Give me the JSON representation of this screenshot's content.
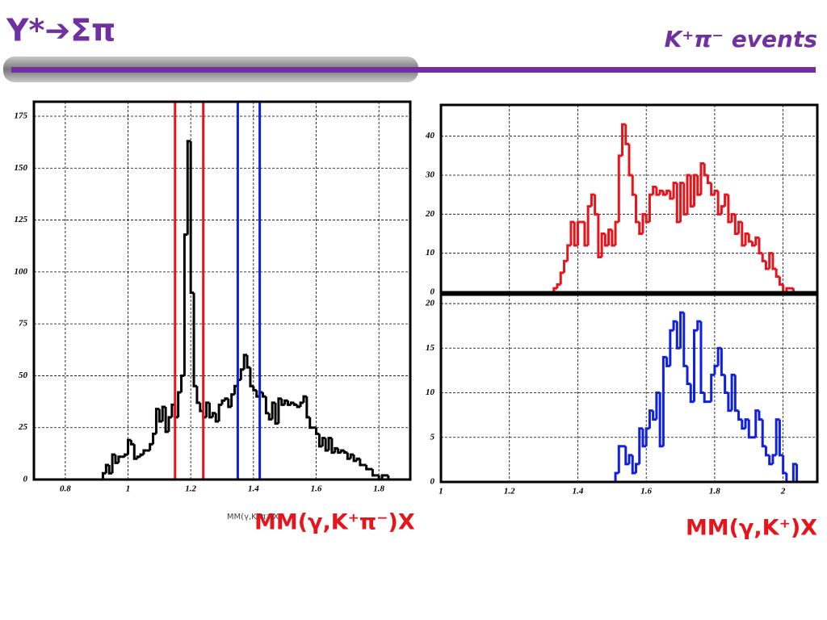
{
  "title": "Y*➔Σπ",
  "subtitle": "K⁺π⁻ events",
  "annotations": [
    "MM(γ,K⁺π⁻)X",
    "MM(γ,K⁺)X"
  ],
  "chart_data": [
    {
      "type": "histogram",
      "xlabel": "MM(γ,K⁺π⁻)X",
      "color": "#000000",
      "grid": true,
      "xlim": [
        0.7,
        1.9
      ],
      "ylim": [
        0,
        182
      ],
      "xticks": [
        0.8,
        1,
        1.2,
        1.4,
        1.6,
        1.8
      ],
      "yticks": [
        0,
        25,
        50,
        75,
        100,
        125,
        150,
        175
      ],
      "bins": [
        0.92,
        0.93,
        0.94,
        0.95,
        0.96,
        0.97,
        0.98,
        0.99,
        1,
        1.01,
        1.02,
        1.03,
        1.04,
        1.05,
        1.06,
        1.07,
        1.08,
        1.09,
        1.1,
        1.11,
        1.12,
        1.13,
        1.14,
        1.15,
        1.16,
        1.17,
        1.18,
        1.19,
        1.2,
        1.21,
        1.22,
        1.23,
        1.24,
        1.25,
        1.26,
        1.27,
        1.28,
        1.29,
        1.3,
        1.31,
        1.32,
        1.33,
        1.34,
        1.35,
        1.36,
        1.37,
        1.38,
        1.39,
        1.4,
        1.41,
        1.42,
        1.43,
        1.44,
        1.45,
        1.46,
        1.47,
        1.48,
        1.49,
        1.5,
        1.51,
        1.52,
        1.53,
        1.54,
        1.55,
        1.56,
        1.57,
        1.58,
        1.59,
        1.6,
        1.61,
        1.62,
        1.63,
        1.64,
        1.65,
        1.66,
        1.67,
        1.68,
        1.69,
        1.7,
        1.71,
        1.72,
        1.73,
        1.74,
        1.75,
        1.76,
        1.77,
        1.78,
        1.79,
        1.8,
        1.81,
        1.82,
        1.83,
        1.84
      ],
      "values": [
        3,
        7,
        3,
        12,
        8,
        11,
        11,
        12,
        19,
        17,
        10,
        11,
        12,
        14,
        14,
        17,
        22,
        34,
        28,
        35,
        23,
        30,
        36,
        30,
        42,
        50,
        118,
        163,
        90,
        45,
        37,
        33,
        30,
        37,
        30,
        32,
        28,
        36,
        38,
        39,
        35,
        41,
        45,
        48,
        53,
        60,
        54,
        45,
        43,
        40,
        42,
        40,
        32,
        29,
        37,
        27,
        39,
        36,
        38,
        36,
        37,
        36,
        35,
        37,
        40,
        30,
        25,
        25,
        22,
        16,
        20,
        14,
        20,
        13,
        15,
        13,
        14,
        13,
        10,
        12,
        9,
        10,
        7,
        7,
        5,
        5,
        2,
        2,
        0,
        2,
        2,
        0
      ],
      "markers": [
        {
          "x": 1.15,
          "color": "#e8141c"
        },
        {
          "x": 1.24,
          "color": "#e8141c"
        },
        {
          "x": 1.35,
          "color": "#1020e0"
        },
        {
          "x": 1.42,
          "color": "#1020e0"
        }
      ]
    },
    {
      "type": "histogram",
      "color": "#e8141c",
      "grid": true,
      "show_xtick_labels": false,
      "xlim": [
        1,
        2.1
      ],
      "ylim": [
        0,
        48
      ],
      "xticks": [
        1,
        1.2,
        1.4,
        1.6,
        1.8,
        2
      ],
      "yticks": [
        0,
        10,
        20,
        30,
        40
      ],
      "bins": [
        1.33,
        1.34,
        1.35,
        1.36,
        1.37,
        1.38,
        1.39,
        1.4,
        1.41,
        1.42,
        1.43,
        1.44,
        1.45,
        1.46,
        1.47,
        1.48,
        1.49,
        1.5,
        1.51,
        1.52,
        1.53,
        1.54,
        1.55,
        1.56,
        1.57,
        1.58,
        1.59,
        1.6,
        1.61,
        1.62,
        1.63,
        1.64,
        1.65,
        1.66,
        1.67,
        1.68,
        1.69,
        1.7,
        1.71,
        1.72,
        1.73,
        1.74,
        1.75,
        1.76,
        1.77,
        1.78,
        1.79,
        1.8,
        1.81,
        1.82,
        1.83,
        1.84,
        1.85,
        1.86,
        1.87,
        1.88,
        1.89,
        1.9,
        1.91,
        1.92,
        1.93,
        1.94,
        1.95,
        1.96,
        1.97,
        1.98,
        1.99,
        2,
        2.01,
        2.02,
        2.03
      ],
      "values": [
        1,
        2,
        5,
        8,
        12,
        18,
        12,
        18,
        18,
        12,
        22,
        25,
        20,
        9,
        15,
        12,
        16,
        12,
        18,
        35,
        43,
        38,
        30,
        25,
        18,
        15,
        20,
        18,
        25,
        27,
        25,
        26,
        25,
        26,
        24,
        28,
        18,
        28,
        20,
        30,
        22,
        30,
        25,
        33,
        30,
        28,
        25,
        26,
        20,
        22,
        25,
        18,
        20,
        15,
        18,
        12,
        15,
        13,
        12,
        14,
        10,
        8,
        6,
        10,
        6,
        4,
        2,
        0,
        1,
        1
      ]
    },
    {
      "type": "histogram",
      "color": "#1020e0",
      "grid": true,
      "baseline": true,
      "xlim": [
        1,
        2.1
      ],
      "ylim": [
        0,
        21
      ],
      "xticks": [
        1,
        1.2,
        1.4,
        1.6,
        1.8,
        2
      ],
      "yticks": [
        0,
        5,
        10,
        15,
        20
      ],
      "bins": [
        1.51,
        1.52,
        1.53,
        1.54,
        1.55,
        1.56,
        1.57,
        1.58,
        1.59,
        1.6,
        1.61,
        1.62,
        1.63,
        1.64,
        1.65,
        1.66,
        1.67,
        1.68,
        1.69,
        1.7,
        1.71,
        1.72,
        1.73,
        1.74,
        1.75,
        1.76,
        1.77,
        1.78,
        1.79,
        1.8,
        1.81,
        1.82,
        1.83,
        1.84,
        1.85,
        1.86,
        1.87,
        1.88,
        1.89,
        1.9,
        1.91,
        1.92,
        1.93,
        1.94,
        1.95,
        1.96,
        1.97,
        1.98,
        1.99,
        2,
        2.01,
        2.02,
        2.03,
        2.04,
        2.05
      ],
      "values": [
        1,
        4,
        4,
        2,
        3,
        1,
        2,
        6,
        4,
        6,
        8,
        7,
        10,
        4,
        14,
        13,
        17,
        18,
        15,
        19,
        13,
        11,
        9,
        17,
        18,
        10,
        9,
        9,
        12,
        13,
        15,
        12,
        10,
        8,
        12,
        8,
        7,
        6,
        7,
        5,
        5,
        8,
        7,
        4,
        3,
        2,
        3,
        7,
        3,
        1,
        0,
        0,
        2,
        0
      ]
    }
  ]
}
